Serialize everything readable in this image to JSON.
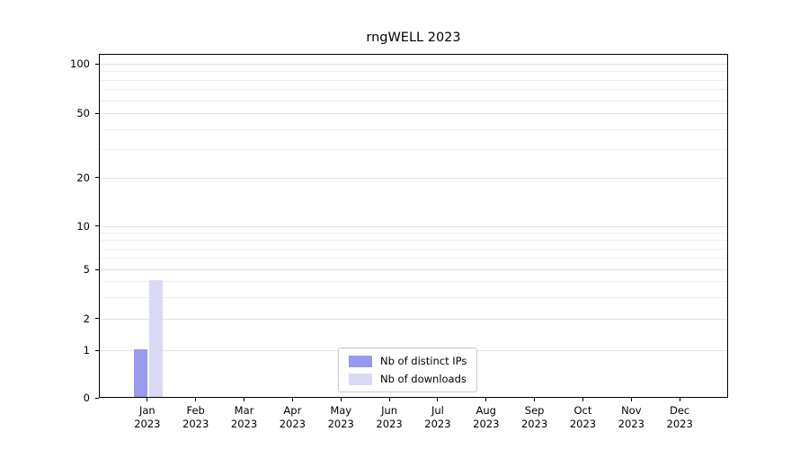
{
  "chart_data": {
    "type": "bar",
    "title": "rngWELL 2023",
    "categories": [
      "Jan",
      "Feb",
      "Mar",
      "Apr",
      "May",
      "Jun",
      "Jul",
      "Aug",
      "Sep",
      "Oct",
      "Nov",
      "Dec"
    ],
    "year": "2023",
    "series": [
      {
        "name": "Nb of distinct IPs",
        "color": "#9999ee",
        "values": [
          1,
          0,
          0,
          0,
          0,
          0,
          0,
          0,
          0,
          0,
          0,
          0
        ]
      },
      {
        "name": "Nb of downloads",
        "color": "#d9d9f6",
        "values": [
          4,
          0,
          0,
          0,
          0,
          0,
          0,
          0,
          0,
          0,
          0,
          0
        ]
      }
    ],
    "yticks": [
      0,
      1,
      2,
      5,
      10,
      20,
      50,
      100
    ],
    "yminor": [
      3,
      4,
      6,
      7,
      8,
      9,
      30,
      40,
      60,
      70,
      80,
      90
    ],
    "ylim": [
      0,
      115
    ],
    "scale": "log-like",
    "grid": true,
    "legend_position": "lower center"
  }
}
